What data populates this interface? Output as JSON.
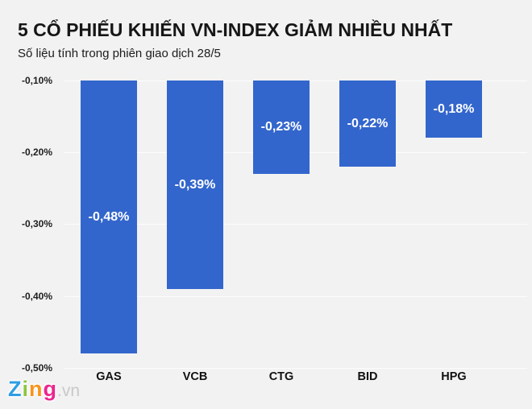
{
  "chart_data": {
    "type": "bar",
    "title": "5 CỔ PHIẾU KHIẾN VN-INDEX GIẢM NHIỀU NHẤT",
    "subtitle": "Số liệu tính trong phiên giao dịch 28/5",
    "categories": [
      "GAS",
      "VCB",
      "CTG",
      "BID",
      "HPG"
    ],
    "values": [
      -0.48,
      -0.39,
      -0.23,
      -0.22,
      -0.18
    ],
    "value_labels": [
      "-0,48%",
      "-0,39%",
      "-0,23%",
      "-0,22%",
      "-0,18%"
    ],
    "y_ticks": [
      "-0,10%",
      "-0,20%",
      "-0,30%",
      "-0,40%",
      "-0,50%"
    ],
    "ylim": [
      -0.5,
      -0.1
    ],
    "xlabel": "",
    "ylabel": "",
    "grid": true,
    "legend": "none",
    "bar_color": "#3366cc",
    "value_label_color": "#ffffff",
    "background_color": "#f2f2f3"
  },
  "watermark": {
    "letters": [
      {
        "char": "Z",
        "color": "#2e9de4"
      },
      {
        "char": "i",
        "color": "#8cc63e"
      },
      {
        "char": "n",
        "color": "#f7941d"
      },
      {
        "char": "g",
        "color": "#ec268f"
      }
    ],
    "suffix": ".vn",
    "suffix_color": "#c9c9c9"
  }
}
